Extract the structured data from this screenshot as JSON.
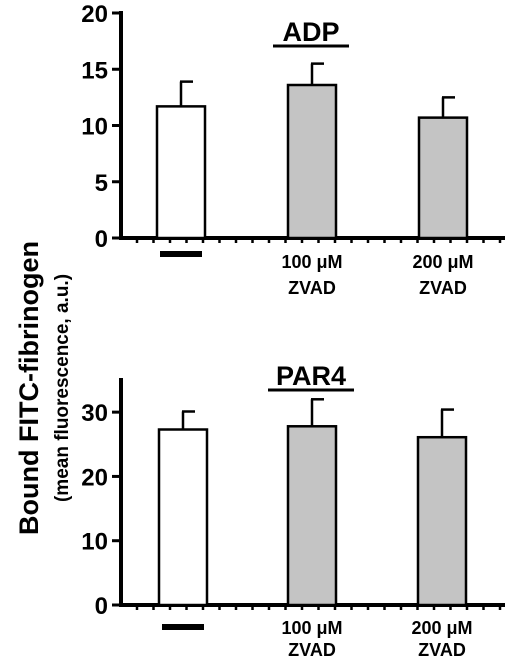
{
  "y_label_main": "Bound FITC-fibrinogen",
  "y_label_sub": "(mean fluorescence, a.u.)",
  "chart_data": [
    {
      "type": "bar",
      "title": "ADP",
      "categories": [
        "—",
        "100 μM ZVAD",
        "200 μM ZVAD"
      ],
      "category_lines": [
        [
          "—"
        ],
        [
          "100 μM",
          "ZVAD"
        ],
        [
          "200 μM",
          "ZVAD"
        ]
      ],
      "values": [
        11.7,
        13.6,
        10.7
      ],
      "errors": [
        2.2,
        1.9,
        1.8
      ],
      "bar_colors": [
        "#ffffff",
        "#c4c4c4",
        "#c4c4c4"
      ],
      "ylim": [
        0,
        20
      ],
      "yticks": [
        0,
        5,
        10,
        15,
        20
      ],
      "xlabel": "",
      "ylabel": "Bound FITC-fibrinogen (mean fluorescence, a.u.)"
    },
    {
      "type": "bar",
      "title": "PAR4",
      "categories": [
        "—",
        "100 μM ZVAD",
        "200 μM ZVAD"
      ],
      "category_lines": [
        [
          "—"
        ],
        [
          "100 μM",
          "ZVAD"
        ],
        [
          "200 μM",
          "ZVAD"
        ]
      ],
      "values": [
        27.3,
        27.8,
        26.1
      ],
      "errors": [
        2.8,
        4.2,
        4.3
      ],
      "bar_colors": [
        "#ffffff",
        "#c4c4c4",
        "#c4c4c4"
      ],
      "ylim": [
        0,
        35
      ],
      "yticks": [
        0,
        10,
        20,
        30
      ],
      "xlabel": "",
      "ylabel": "Bound FITC-fibrinogen (mean fluorescence, a.u.)"
    }
  ]
}
